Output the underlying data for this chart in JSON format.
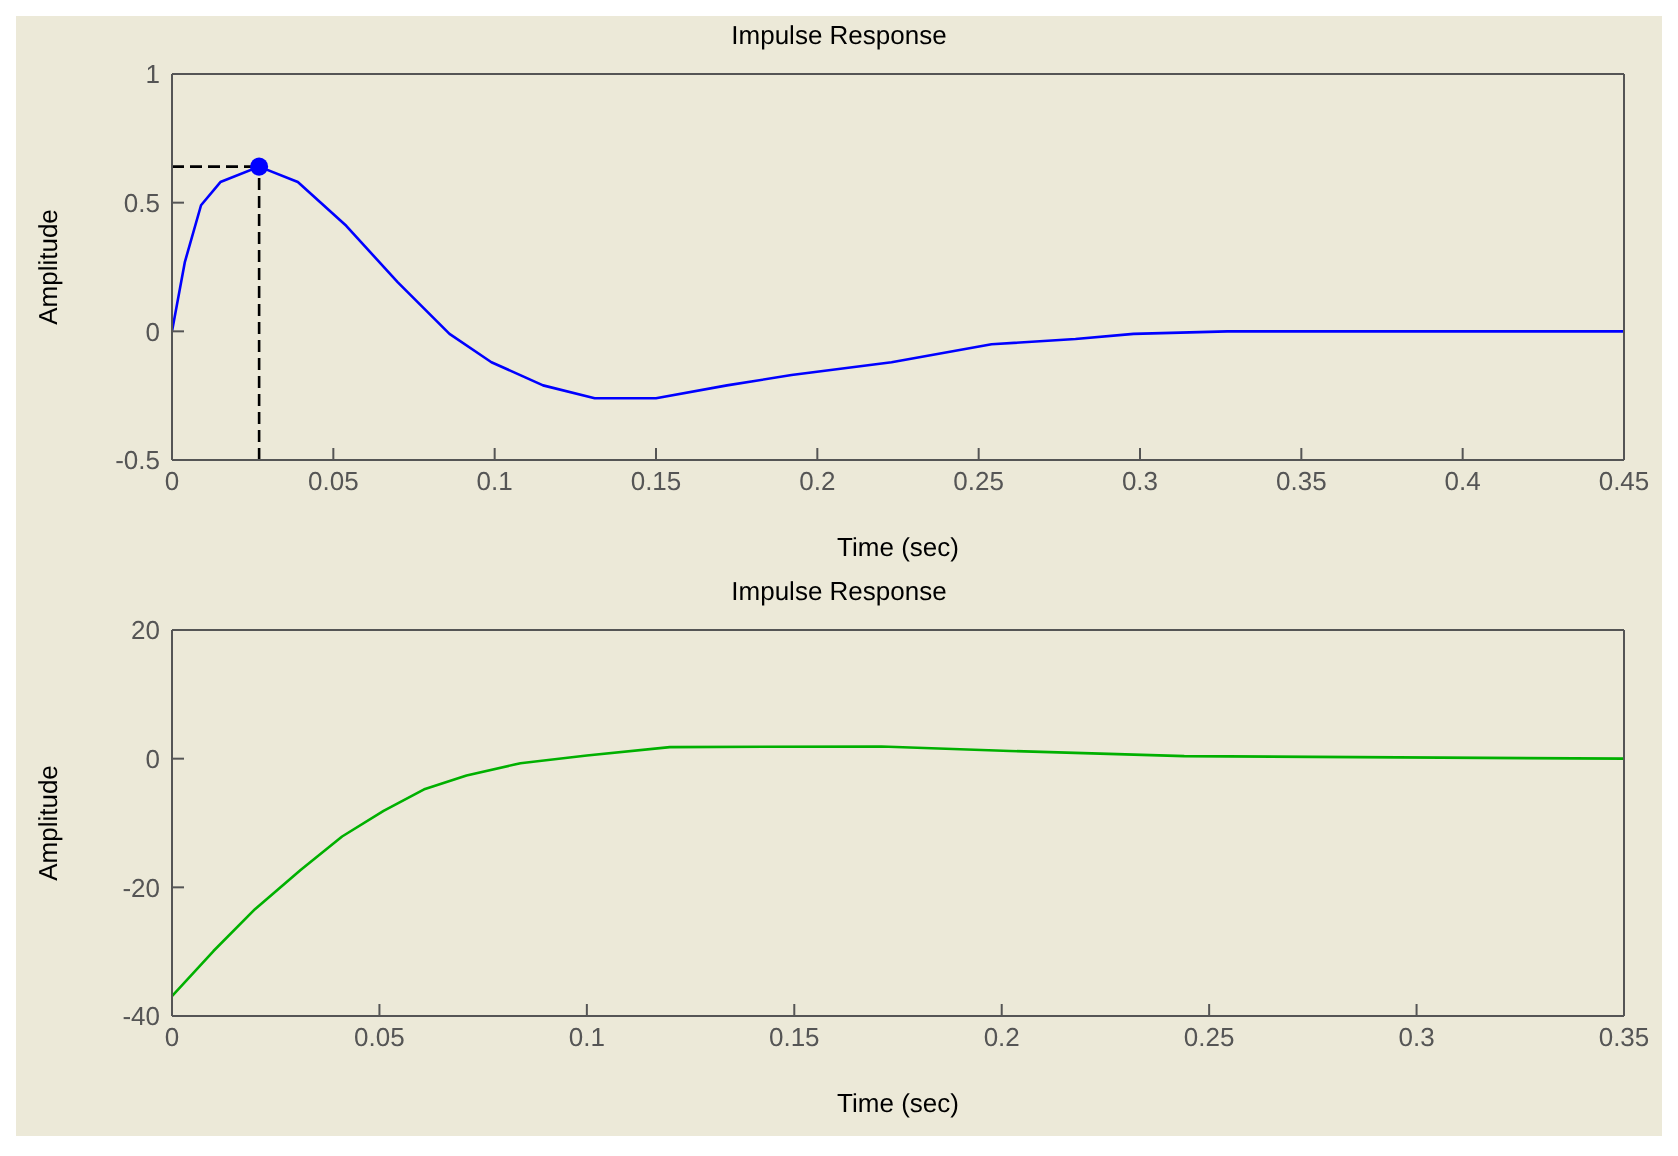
{
  "chart_data": [
    {
      "type": "line",
      "title": "Impulse Response",
      "xlabel": "Time (sec)",
      "ylabel": "Amplitude",
      "xlim": [
        0,
        0.45
      ],
      "xticks": [
        0,
        0.05,
        0.1,
        0.15,
        0.2,
        0.25,
        0.3,
        0.35,
        0.4,
        0.45
      ],
      "ylim": [
        -0.5,
        1
      ],
      "yticks": [
        -0.5,
        0,
        0.5,
        1
      ],
      "grid": false,
      "line_style": "solid",
      "series": [
        {
          "color": "#0000ff",
          "marker": "none",
          "x": [
            0,
            0.004,
            0.009,
            0.015,
            0.027,
            0.039,
            0.054,
            0.07,
            0.086,
            0.099,
            0.115,
            0.131,
            0.15,
            0.172,
            0.192,
            0.223,
            0.254,
            0.28,
            0.298,
            0.327,
            0.45
          ],
          "values": [
            0,
            0.27,
            0.49,
            0.58,
            0.64,
            0.58,
            0.41,
            0.19,
            -0.01,
            -0.12,
            -0.21,
            -0.26,
            -0.26,
            -0.21,
            -0.17,
            -0.12,
            -0.05,
            -0.03,
            -0.01,
            0,
            0
          ]
        },
        {
          "color": "#000000",
          "marker": "none",
          "line_style": "dashed",
          "x": [
            0,
            0.027
          ],
          "values": [
            0.64,
            0.64
          ]
        },
        {
          "color": "#000000",
          "marker": "none",
          "line_style": "dashed",
          "x": [
            0.027,
            0.027
          ],
          "values": [
            -0.5,
            0.64
          ]
        },
        {
          "type": "scatter",
          "color": "#0000ff",
          "marker": "circle",
          "x": [
            0.027
          ],
          "values": [
            0.64
          ]
        }
      ]
    },
    {
      "type": "line",
      "title": "Impulse Response",
      "xlabel": "Time (sec)",
      "ylabel": "Amplitude",
      "xlim": [
        0,
        0.35
      ],
      "xticks": [
        0,
        0.05,
        0.1,
        0.15,
        0.2,
        0.25,
        0.3,
        0.35
      ],
      "ylim": [
        -40,
        20
      ],
      "yticks": [
        -40,
        -20,
        0,
        20
      ],
      "grid": false,
      "line_style": "solid",
      "series": [
        {
          "color": "#00b000",
          "marker": "none",
          "x": [
            0,
            0.01,
            0.02,
            0.031,
            0.041,
            0.051,
            0.061,
            0.071,
            0.084,
            0.1,
            0.12,
            0.171,
            0.202,
            0.244,
            0.35
          ],
          "values": [
            -36.9,
            -29.9,
            -23.4,
            -17.3,
            -12.1,
            -8.1,
            -4.7,
            -2.6,
            -0.7,
            0.5,
            1.8,
            1.9,
            1.2,
            0.4,
            0
          ]
        }
      ]
    }
  ]
}
